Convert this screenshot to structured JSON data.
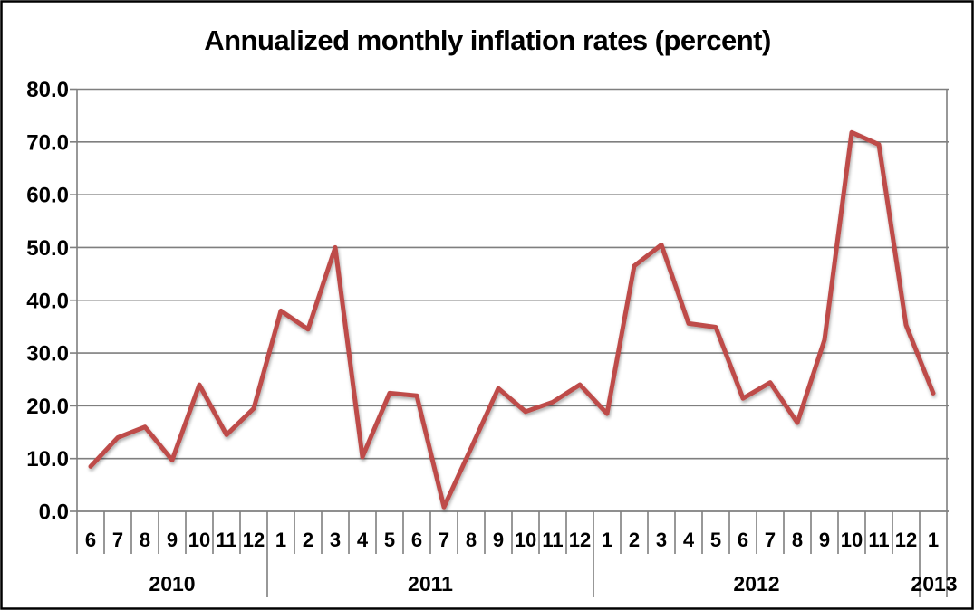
{
  "chart_data": {
    "type": "line",
    "title": "Annualized monthly inflation rates (percent)",
    "xlabel": "",
    "ylabel": "",
    "ylim": [
      0,
      80
    ],
    "ytick_step": 10,
    "ytick_labels": [
      "0.0",
      "10.0",
      "20.0",
      "30.0",
      "40.0",
      "50.0",
      "60.0",
      "70.0",
      "80.0"
    ],
    "grid": true,
    "legend": "none",
    "x_groups": [
      {
        "year": "2010",
        "months": [
          "6",
          "7",
          "8",
          "9",
          "10",
          "11",
          "12"
        ]
      },
      {
        "year": "2011",
        "months": [
          "1",
          "2",
          "3",
          "4",
          "5",
          "6",
          "7",
          "8",
          "9",
          "10",
          "11",
          "12"
        ]
      },
      {
        "year": "2012",
        "months": [
          "1",
          "2",
          "3",
          "4",
          "5",
          "6",
          "7",
          "8",
          "9",
          "10",
          "11",
          "12"
        ]
      },
      {
        "year": "2013",
        "months": [
          "1"
        ]
      }
    ],
    "series": [
      {
        "name": "annualized-monthly-inflation-rate",
        "color": "#BE4B48",
        "values": [
          8.5,
          14.0,
          16.0,
          9.7,
          24.0,
          14.5,
          19.5,
          38.0,
          34.5,
          50.0,
          10.3,
          22.4,
          21.9,
          0.8,
          12.0,
          23.3,
          18.9,
          20.7,
          24.0,
          18.5,
          46.5,
          50.5,
          35.6,
          34.9,
          21.4,
          24.4,
          16.8,
          32.5,
          71.8,
          69.5,
          35.3,
          22.4
        ]
      }
    ],
    "annotations": [
      {
        "type": "vline",
        "x_month_index": 7.4,
        "y_bottom": -0.9,
        "y_top": 75.0,
        "color": "#4F81BD"
      },
      {
        "type": "vline",
        "x_month_index": 20.23,
        "y_bottom": -0.9,
        "y_top": 74.5,
        "color": "#4F81BD"
      }
    ]
  },
  "colors": {
    "series_red": "#BE4B48",
    "annotation_blue": "#4F81BD",
    "grid_gray": "#7F7F7F",
    "frame_black": "#000000",
    "background": "#FFFFFF"
  }
}
